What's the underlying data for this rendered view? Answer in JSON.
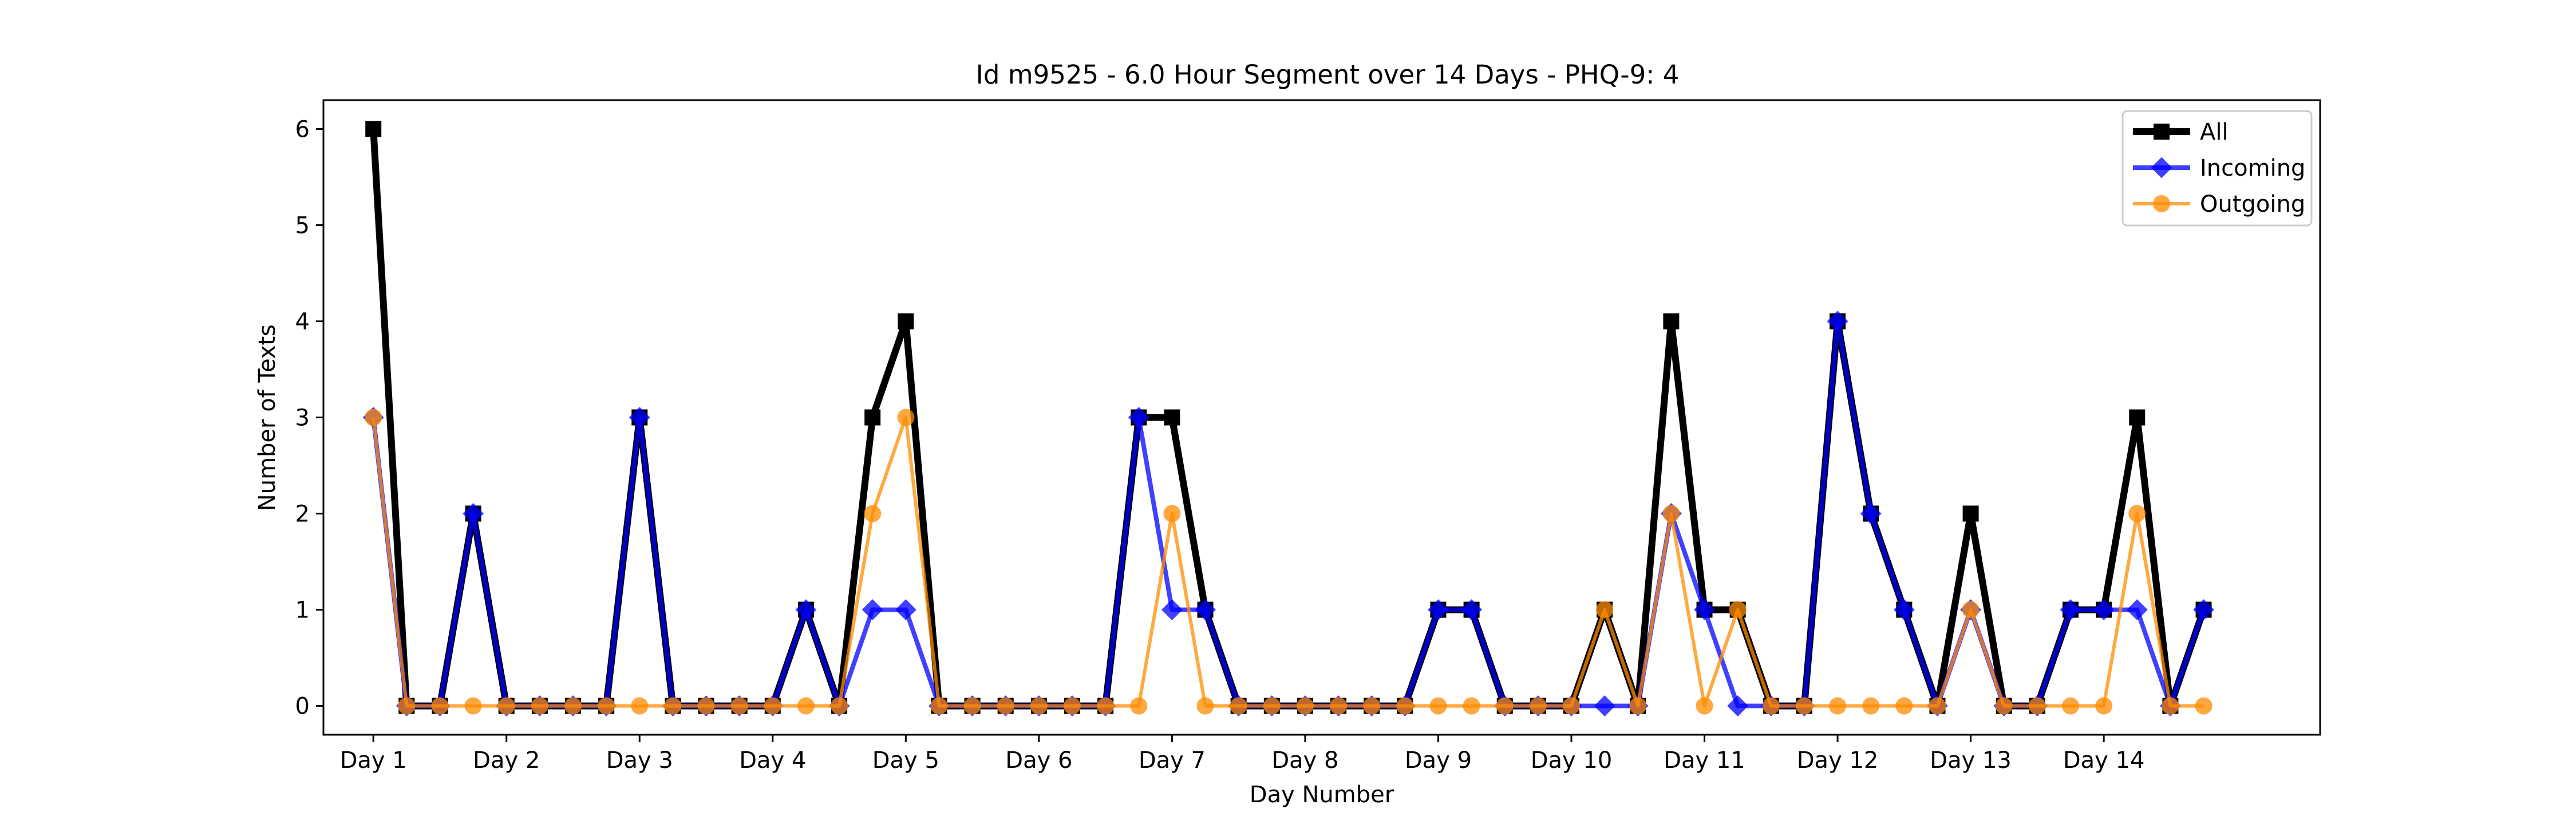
{
  "chart_data": {
    "type": "line",
    "title": "Id m9525 - 6.0 Hour Segment over 14 Days - PHQ-9: 4",
    "xlabel": "Day Number",
    "ylabel": "Number of Texts",
    "xlim": [
      -1.5,
      58.5
    ],
    "ylim": [
      -0.3,
      6.3
    ],
    "x_ticks": [
      0,
      4,
      8,
      12,
      16,
      20,
      24,
      28,
      32,
      36,
      40,
      44,
      48,
      52
    ],
    "x_tick_labels": [
      "Day 1",
      "Day 2",
      "Day 3",
      "Day 4",
      "Day 5",
      "Day 6",
      "Day 7",
      "Day 8",
      "Day 9",
      "Day 10",
      "Day 11",
      "Day 12",
      "Day 13",
      "Day 14"
    ],
    "y_ticks": [
      0,
      1,
      2,
      3,
      4,
      5,
      6
    ],
    "y_tick_labels": [
      "0",
      "1",
      "2",
      "3",
      "4",
      "5",
      "6"
    ],
    "grid": false,
    "legend_position": "top-right",
    "series": [
      {
        "name": "All",
        "color": "#000000",
        "marker": "square",
        "values": [
          6,
          0,
          0,
          2,
          0,
          0,
          0,
          0,
          3,
          0,
          0,
          0,
          0,
          1,
          0,
          3,
          4,
          0,
          0,
          0,
          0,
          0,
          0,
          3,
          3,
          1,
          0,
          0,
          0,
          0,
          0,
          0,
          1,
          1,
          0,
          0,
          0,
          1,
          0,
          4,
          1,
          1,
          0,
          0,
          4,
          2,
          1,
          0,
          2,
          0,
          0,
          1,
          1,
          3,
          0,
          1
        ]
      },
      {
        "name": "Incoming",
        "color": "#0000ff",
        "marker": "diamond",
        "values": [
          3,
          0,
          0,
          2,
          0,
          0,
          0,
          0,
          3,
          0,
          0,
          0,
          0,
          1,
          0,
          1,
          1,
          0,
          0,
          0,
          0,
          0,
          0,
          3,
          1,
          1,
          0,
          0,
          0,
          0,
          0,
          0,
          1,
          1,
          0,
          0,
          0,
          0,
          0,
          2,
          1,
          0,
          0,
          0,
          4,
          2,
          1,
          0,
          1,
          0,
          0,
          1,
          1,
          1,
          0,
          1
        ]
      },
      {
        "name": "Outgoing",
        "color": "#ff8c00",
        "marker": "circle",
        "values": [
          3,
          0,
          0,
          0,
          0,
          0,
          0,
          0,
          0,
          0,
          0,
          0,
          0,
          0,
          0,
          2,
          3,
          0,
          0,
          0,
          0,
          0,
          0,
          0,
          2,
          0,
          0,
          0,
          0,
          0,
          0,
          0,
          0,
          0,
          0,
          0,
          0,
          1,
          0,
          2,
          0,
          1,
          0,
          0,
          0,
          0,
          0,
          0,
          1,
          0,
          0,
          0,
          0,
          2,
          0,
          0
        ]
      }
    ]
  }
}
